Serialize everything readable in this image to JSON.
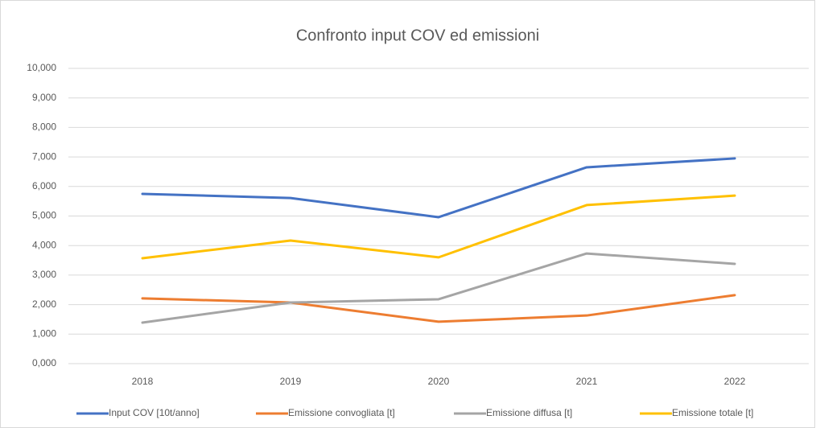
{
  "chart_data": {
    "type": "line",
    "title": "Confronto input COV ed emissioni",
    "categories": [
      "2018",
      "2019",
      "2020",
      "2021",
      "2022"
    ],
    "series": [
      {
        "name": "Input COV [10t/anno]",
        "color": "#4472c4",
        "values": [
          5.75,
          5.61,
          4.96,
          6.65,
          6.95
        ]
      },
      {
        "name": "Emissione convogliata [t]",
        "color": "#ed7d31",
        "values": [
          2.21,
          2.07,
          1.42,
          1.63,
          2.32
        ]
      },
      {
        "name": "Emissione diffusa [t]",
        "color": "#a5a5a5",
        "values": [
          1.39,
          2.07,
          2.18,
          3.73,
          3.38
        ]
      },
      {
        "name": "Emissione totale [t]",
        "color": "#ffc000",
        "values": [
          3.57,
          4.17,
          3.6,
          5.37,
          5.69
        ]
      }
    ],
    "ylim": [
      0,
      10
    ],
    "yticks": [
      {
        "value": 0,
        "label": "0,000"
      },
      {
        "value": 1,
        "label": "1,000"
      },
      {
        "value": 2,
        "label": "2,000"
      },
      {
        "value": 3,
        "label": "3,000"
      },
      {
        "value": 4,
        "label": "4,000"
      },
      {
        "value": 5,
        "label": "5,000"
      },
      {
        "value": 6,
        "label": "6,000"
      },
      {
        "value": 7,
        "label": "7,000"
      },
      {
        "value": 8,
        "label": "8,000"
      },
      {
        "value": 9,
        "label": "9,000"
      },
      {
        "value": 10,
        "label": "10,000"
      }
    ],
    "grid": true,
    "legend": "bottom"
  }
}
